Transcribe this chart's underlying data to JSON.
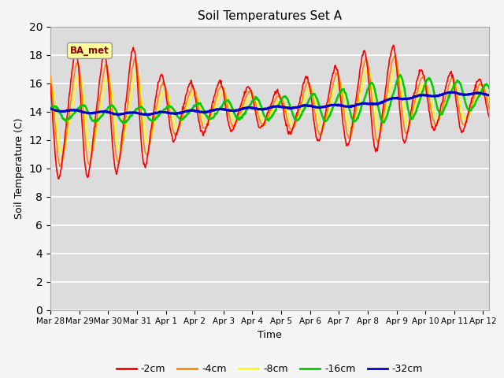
{
  "title": "Soil Temperatures Set A",
  "xlabel": "Time",
  "ylabel": "Soil Temperature (C)",
  "ylim": [
    0,
    20
  ],
  "yticks": [
    0,
    2,
    4,
    6,
    8,
    10,
    12,
    14,
    16,
    18,
    20
  ],
  "annotation": "BA_met",
  "bg_color": "#dcdcdc",
  "fig_facecolor": "#f5f5f5",
  "series_colors": {
    "-2cm": "#ff0000",
    "-4cm": "#ff8800",
    "-8cm": "#ffff00",
    "-16cm": "#00cc00",
    "-32cm": "#0000cc"
  },
  "series_linewidths": {
    "-2cm": 1.2,
    "-4cm": 1.2,
    "-8cm": 1.2,
    "-16cm": 1.8,
    "-32cm": 2.2
  },
  "x_tick_labels": [
    "Mar 28",
    "Mar 29",
    "Mar 30",
    "Mar 31",
    "Apr 1",
    "Apr 2",
    "Apr 3",
    "Apr 4",
    "Apr 5",
    "Apr 6",
    "Apr 7",
    "Apr 8",
    "Apr 9",
    "Apr 10",
    "Apr 11",
    "Apr 12"
  ],
  "x_tick_positions": [
    0,
    1,
    2,
    3,
    4,
    5,
    6,
    7,
    8,
    9,
    10,
    11,
    12,
    13,
    14,
    15
  ]
}
